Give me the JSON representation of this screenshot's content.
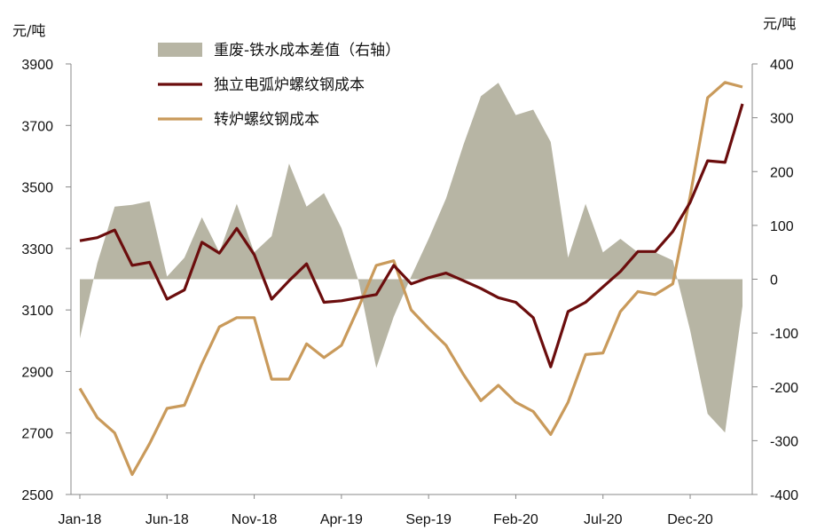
{
  "chart_data": {
    "type": "line",
    "left_unit": "元/吨",
    "right_unit": "元/吨",
    "x_tick_labels": [
      "Jan-18",
      "Jun-18",
      "Nov-18",
      "Apr-19",
      "Sep-19",
      "Feb-20",
      "Jul-20",
      "Dec-20"
    ],
    "x_tick_indices": [
      0,
      5,
      10,
      15,
      20,
      25,
      30,
      35
    ],
    "left_axis": {
      "ylim": [
        2500,
        3900
      ],
      "ticks": [
        2500,
        2700,
        2900,
        3100,
        3300,
        3500,
        3700,
        3900
      ]
    },
    "right_axis": {
      "ylim": [
        -400,
        400
      ],
      "ticks": [
        -400,
        -300,
        -200,
        -100,
        0,
        100,
        200,
        300,
        400
      ]
    },
    "colors": {
      "area": "#b7b5a4",
      "eaf": "#6b0d0d",
      "bof": "#c99a5b"
    },
    "legend": [
      "重废-铁水成本差值（右轴）",
      "独立电弧炉螺纹钢成本",
      "转炉螺纹钢成本"
    ],
    "series": [
      {
        "name": "重废-铁水成本差值（右轴）",
        "axis": "right",
        "kind": "area",
        "values": [
          -110,
          30,
          135,
          138,
          145,
          5,
          40,
          115,
          50,
          140,
          50,
          80,
          215,
          135,
          160,
          95,
          -5,
          -165,
          -70,
          5,
          75,
          150,
          250,
          340,
          365,
          305,
          315,
          255,
          40,
          140,
          50,
          75,
          50,
          50,
          35,
          -95,
          -250,
          -285,
          -50
        ]
      },
      {
        "name": "独立电弧炉螺纹钢成本",
        "axis": "left",
        "kind": "line",
        "values": [
          3325,
          3335,
          3360,
          3245,
          3255,
          3135,
          3165,
          3320,
          3285,
          3365,
          3280,
          3135,
          3195,
          3250,
          3125,
          3130,
          3140,
          3150,
          3245,
          3185,
          3205,
          3220,
          3195,
          3170,
          3140,
          3125,
          3075,
          2915,
          3095,
          3125,
          3175,
          3225,
          3290,
          3290,
          3355,
          3450,
          3585,
          3580,
          3770
        ]
      },
      {
        "name": "转炉螺纹钢成本",
        "axis": "left",
        "kind": "line",
        "values": [
          2845,
          2750,
          2700,
          2565,
          2665,
          2780,
          2790,
          2925,
          3045,
          3075,
          3075,
          2875,
          2875,
          2990,
          2945,
          2985,
          3110,
          3245,
          3260,
          3100,
          3040,
          2985,
          2890,
          2805,
          2855,
          2800,
          2770,
          2695,
          2800,
          2955,
          2960,
          3095,
          3160,
          3150,
          3185,
          3470,
          3790,
          3840,
          3825
        ]
      }
    ]
  }
}
